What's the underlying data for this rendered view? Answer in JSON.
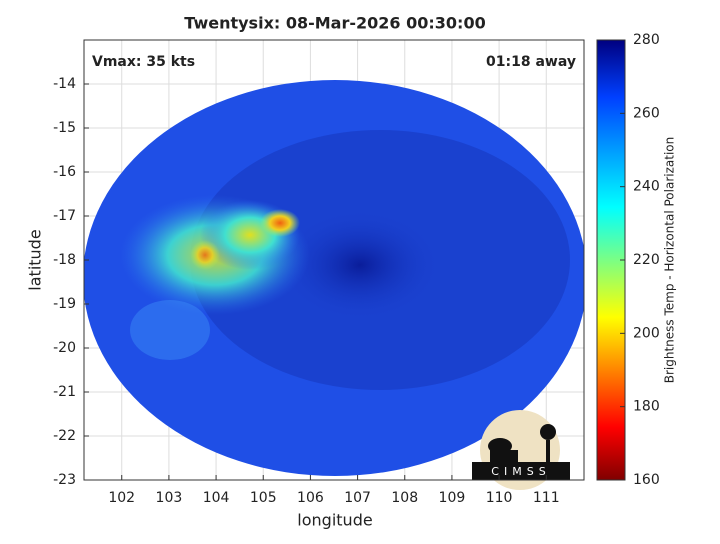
{
  "chart_data": {
    "type": "map",
    "title": "Twentysix: 08-Mar-2026 00:30:00",
    "annotations": [
      "Vmax: 35 kts",
      "01:18 away"
    ],
    "xlabel": "longitude",
    "ylabel": "latitude",
    "xlim": [
      101.2,
      111.8
    ],
    "ylim": [
      -23,
      -13
    ],
    "xticks": [
      102,
      103,
      104,
      105,
      106,
      107,
      108,
      109,
      110,
      111
    ],
    "yticks": [
      -23,
      -22,
      -21,
      -20,
      -19,
      -18,
      -17,
      -16,
      -15,
      -14
    ],
    "grid": true,
    "colorbar": {
      "label": "Brightness Temp - Horizontal Polarization",
      "lim": [
        160,
        280
      ],
      "ticks": [
        160,
        180,
        200,
        220,
        240,
        260,
        280
      ]
    },
    "logo": "CIMSS"
  }
}
